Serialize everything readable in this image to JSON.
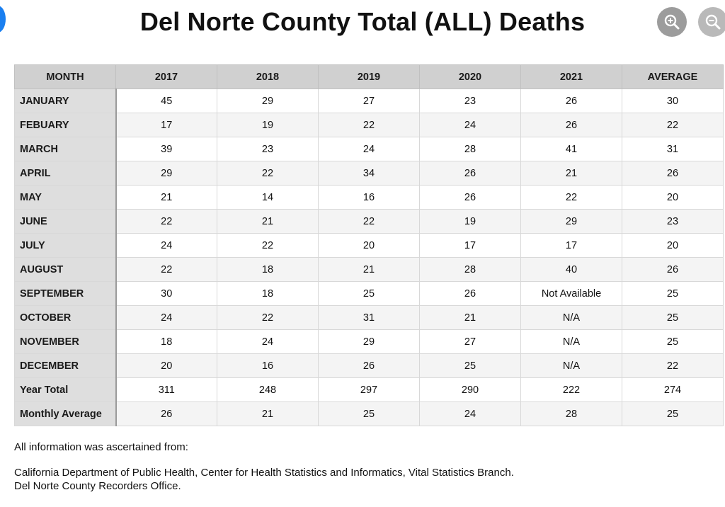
{
  "title": "Del Norte County Total (ALL) Deaths",
  "table": {
    "headers": [
      "MONTH",
      "2017",
      "2018",
      "2019",
      "2020",
      "2021",
      "AVERAGE"
    ],
    "rows": [
      {
        "label": "JANUARY",
        "values": [
          "45",
          "29",
          "27",
          "23",
          "26",
          "30"
        ]
      },
      {
        "label": "FEBUARY",
        "values": [
          "17",
          "19",
          "22",
          "24",
          "26",
          "22"
        ]
      },
      {
        "label": "MARCH",
        "values": [
          "39",
          "23",
          "24",
          "28",
          "41",
          "31"
        ]
      },
      {
        "label": "APRIL",
        "values": [
          "29",
          "22",
          "34",
          "26",
          "21",
          "26"
        ]
      },
      {
        "label": "MAY",
        "values": [
          "21",
          "14",
          "16",
          "26",
          "22",
          "20"
        ]
      },
      {
        "label": "JUNE",
        "values": [
          "22",
          "21",
          "22",
          "19",
          "29",
          "23"
        ]
      },
      {
        "label": "JULY",
        "values": [
          "24",
          "22",
          "20",
          "17",
          "17",
          "20"
        ]
      },
      {
        "label": "AUGUST",
        "values": [
          "22",
          "18",
          "21",
          "28",
          "40",
          "26"
        ]
      },
      {
        "label": "SEPTEMBER",
        "values": [
          "30",
          "18",
          "25",
          "26",
          "Not Available",
          "25"
        ]
      },
      {
        "label": "OCTOBER",
        "values": [
          "24",
          "22",
          "31",
          "21",
          "N/A",
          "25"
        ]
      },
      {
        "label": "NOVEMBER",
        "values": [
          "18",
          "24",
          "29",
          "27",
          "N/A",
          "25"
        ]
      },
      {
        "label": "DECEMBER",
        "values": [
          "20",
          "16",
          "26",
          "25",
          "N/A",
          "22"
        ]
      },
      {
        "label": "Year Total",
        "values": [
          "311",
          "248",
          "297",
          "290",
          "222",
          "274"
        ]
      },
      {
        "label": "Monthly Average",
        "values": [
          "26",
          "21",
          "25",
          "24",
          "28",
          "25"
        ]
      }
    ]
  },
  "notes": {
    "intro": "All information was ascertained from:",
    "source1": "California Department of Public Health, Center for Health Statistics and Informatics, Vital Statistics Branch.",
    "source2": "Del Norte County Recorders Office."
  },
  "icons": {
    "zoom_in": "zoom-in-icon",
    "zoom_out": "zoom-out-icon"
  },
  "colors": {
    "header_bg": "#d0d0d0",
    "label_bg": "#dedede",
    "stripe_bg": "#f4f4f4",
    "zoom_button": "#9c9c9c",
    "accent_blue": "#1a7ff0"
  }
}
